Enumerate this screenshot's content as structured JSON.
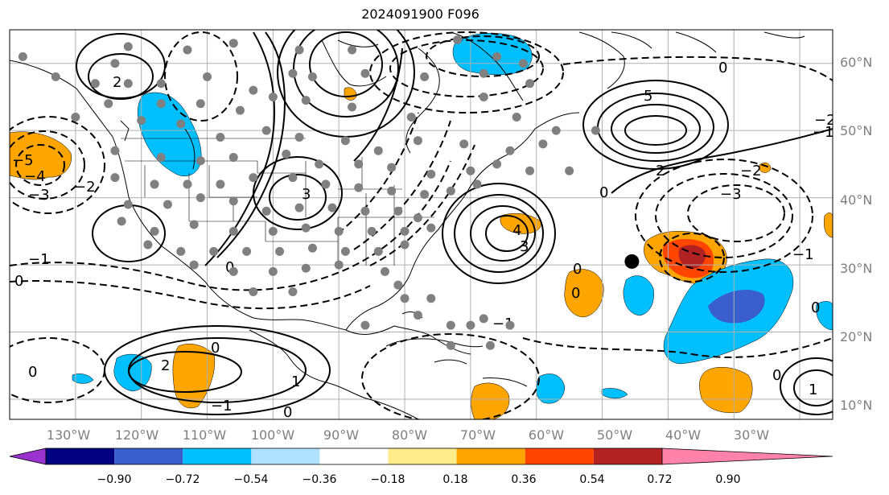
{
  "title": "2024091900 F096",
  "map": {
    "projection": "PlateCarree",
    "lon_range": [
      -140,
      -15
    ],
    "lat_range": [
      7,
      65
    ],
    "grid": true,
    "longitude_labels": [
      "130°W",
      "120°W",
      "110°W",
      "100°W",
      "90°W",
      "80°W",
      "70°W",
      "60°W",
      "50°W",
      "40°W",
      "30°W"
    ],
    "latitude_labels": [
      "60°N",
      "50°N",
      "40°N",
      "30°N",
      "20°N",
      "10°N"
    ],
    "marked_point": {
      "lon": -45.5,
      "lat": 30.5,
      "color": "#000000"
    },
    "observation_marker_color": "#808080",
    "observation_points": [
      [
        -138,
        61
      ],
      [
        -122,
        62.5
      ],
      [
        -113,
        62
      ],
      [
        -106,
        63
      ],
      [
        -96,
        62
      ],
      [
        -88,
        62
      ],
      [
        -72,
        63.5
      ],
      [
        -66,
        61
      ],
      [
        -62,
        60
      ],
      [
        -124,
        60
      ],
      [
        -133,
        58
      ],
      [
        -127,
        57
      ],
      [
        -122,
        57
      ],
      [
        -117,
        57
      ],
      [
        -110,
        58
      ],
      [
        -103,
        56
      ],
      [
        -97,
        58.5
      ],
      [
        -94,
        58
      ],
      [
        -86,
        58.5
      ],
      [
        -77,
        58
      ],
      [
        -68,
        58.5
      ],
      [
        -61,
        57
      ],
      [
        -125,
        54
      ],
      [
        -117,
        54
      ],
      [
        -111,
        54
      ],
      [
        -105,
        53
      ],
      [
        -100,
        55
      ],
      [
        -95,
        54.5
      ],
      [
        -88,
        53.5
      ],
      [
        -79,
        52
      ],
      [
        -68,
        55
      ],
      [
        -63,
        52
      ],
      [
        -57,
        50
      ],
      [
        -51,
        50
      ],
      [
        -130,
        52
      ],
      [
        -120,
        51.5
      ],
      [
        -114,
        51
      ],
      [
        -108,
        49
      ],
      [
        -101,
        50
      ],
      [
        -96,
        49
      ],
      [
        -89,
        48.5
      ],
      [
        -84,
        47
      ],
      [
        -78,
        48.5
      ],
      [
        -71,
        48
      ],
      [
        -64,
        47
      ],
      [
        -59,
        48
      ],
      [
        -55,
        44
      ],
      [
        -124,
        47
      ],
      [
        -117,
        46
      ],
      [
        -111,
        45.5
      ],
      [
        -106,
        46
      ],
      [
        -98,
        46.5
      ],
      [
        -93,
        45
      ],
      [
        -87,
        45
      ],
      [
        -82,
        44.5
      ],
      [
        -76,
        43.5
      ],
      [
        -70,
        44
      ],
      [
        -66,
        45
      ],
      [
        -61,
        44
      ],
      [
        -124,
        43
      ],
      [
        -118,
        42
      ],
      [
        -113,
        42
      ],
      [
        -108,
        42
      ],
      [
        -103,
        43
      ],
      [
        -97,
        43
      ],
      [
        -92,
        42
      ],
      [
        -87,
        41.5
      ],
      [
        -82,
        41
      ],
      [
        -77,
        40.5
      ],
      [
        -73,
        41
      ],
      [
        -69,
        42
      ],
      [
        -122,
        39
      ],
      [
        -116,
        39
      ],
      [
        -111,
        40
      ],
      [
        -106,
        39.5
      ],
      [
        -101,
        38
      ],
      [
        -96,
        38.5
      ],
      [
        -91,
        38.5
      ],
      [
        -86,
        38
      ],
      [
        -81,
        38
      ],
      [
        -78,
        37
      ],
      [
        -123,
        36.5
      ],
      [
        -118,
        35
      ],
      [
        -112,
        36
      ],
      [
        -106,
        35
      ],
      [
        -100,
        35
      ],
      [
        -95,
        35.5
      ],
      [
        -90,
        35
      ],
      [
        -85,
        35
      ],
      [
        -80,
        35
      ],
      [
        -76,
        35.5
      ],
      [
        -119,
        33
      ],
      [
        -114,
        32
      ],
      [
        -109,
        32
      ],
      [
        -104,
        32
      ],
      [
        -99,
        32
      ],
      [
        -94,
        32.5
      ],
      [
        -89,
        32
      ],
      [
        -84,
        32
      ],
      [
        -80,
        33
      ],
      [
        -112,
        30
      ],
      [
        -106,
        29
      ],
      [
        -100,
        29
      ],
      [
        -95,
        29.5
      ],
      [
        -90,
        30
      ],
      [
        -83,
        29
      ],
      [
        -81,
        27
      ],
      [
        -97,
        26
      ],
      [
        -103,
        26
      ],
      [
        -80,
        25
      ],
      [
        -76,
        25
      ],
      [
        -86,
        21
      ],
      [
        -78,
        22.5
      ],
      [
        -73,
        21
      ],
      [
        -70,
        21
      ],
      [
        -68,
        22
      ],
      [
        -64,
        21
      ],
      [
        -73,
        18
      ],
      [
        -67,
        18
      ]
    ]
  },
  "colorbar": {
    "ticks": [
      "−0.90",
      "−0.72",
      "−0.54",
      "−0.36",
      "−0.18",
      "0.18",
      "0.36",
      "0.54",
      "0.72",
      "0.90"
    ],
    "colors": [
      "#9a32cd",
      "#000080",
      "#3a5fcd",
      "#00bfff",
      "#b0e2ff",
      "#ffffff",
      "#ffec8b",
      "#ffa500",
      "#ff4500",
      "#b22222",
      "#ff82ab"
    ]
  },
  "contour_labels": [
    "0",
    "1",
    "2",
    "3",
    "4",
    "5",
    "−1",
    "−2",
    "−3",
    "−4",
    "−5"
  ]
}
